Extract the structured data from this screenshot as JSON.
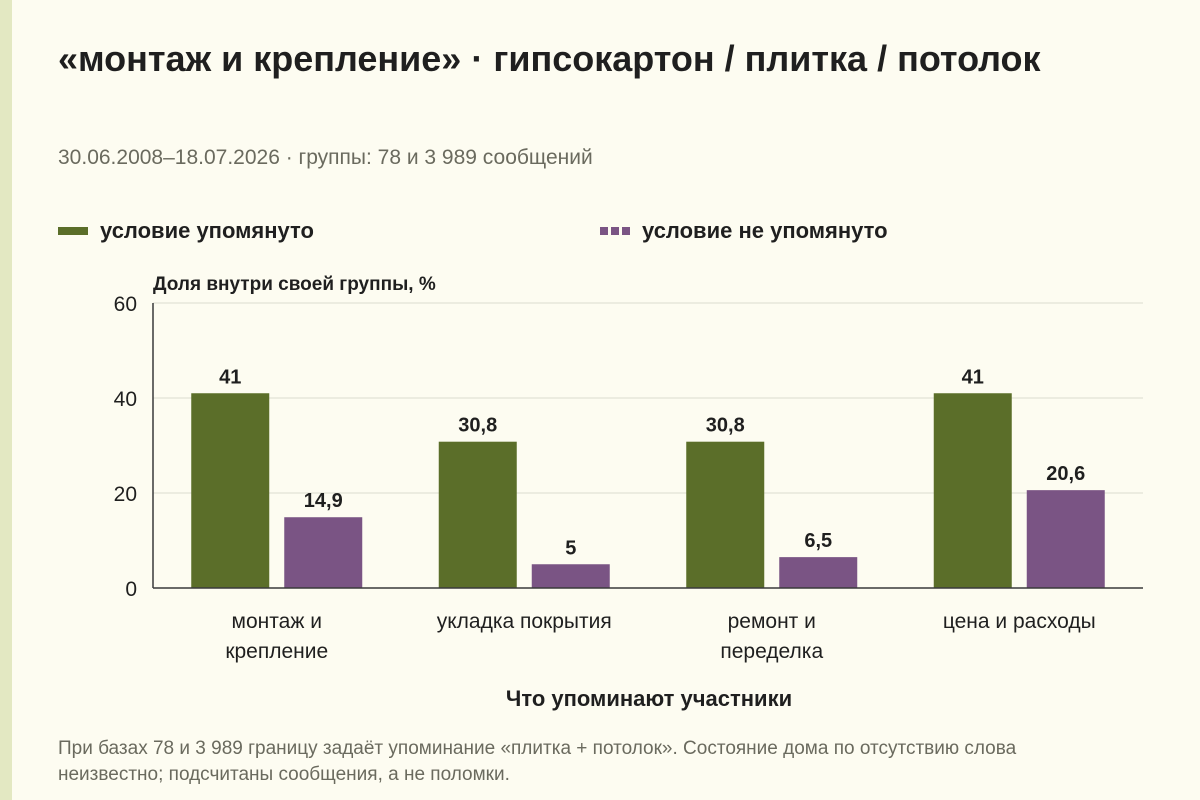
{
  "title": "«монтаж и крепление» · гипсокартон / плитка / потолок",
  "subtitle": "30.06.2008–18.07.2026 · группы: 78 и 3 989 сообщений",
  "caption": "При базах 78 и 3 989 границу задаёт упоминание «плитка + потолок». Состояние дома по отсутствию слова неизвестно; подсчитаны сообщения, а не поломки.",
  "colors": {
    "mentioned": "#5b6e29",
    "not_mentioned": "#7a5484",
    "grid": "#e2e2d6",
    "axis": "#3a3a3a"
  },
  "chart_data": {
    "type": "bar",
    "ylabel": "Доля внутри своей группы, %",
    "xlabel": "Что упоминают участники",
    "ylim": [
      0,
      60
    ],
    "yticks": [
      0,
      20,
      40,
      60
    ],
    "grid": true,
    "legend_position": "top",
    "categories": [
      [
        "монтаж и",
        "крепление"
      ],
      [
        "укладка покрытия"
      ],
      [
        "ремонт и",
        "переделка"
      ],
      [
        "цена и расходы"
      ]
    ],
    "series": [
      {
        "name": "условие упомянуто",
        "values": [
          41,
          30.8,
          30.8,
          41
        ],
        "labels": [
          "41",
          "30,8",
          "30,8",
          "41"
        ]
      },
      {
        "name": "условие не упомянуто",
        "values": [
          14.9,
          5,
          6.5,
          20.6
        ],
        "labels": [
          "14,9",
          "5",
          "6,5",
          "20,6"
        ]
      }
    ]
  }
}
